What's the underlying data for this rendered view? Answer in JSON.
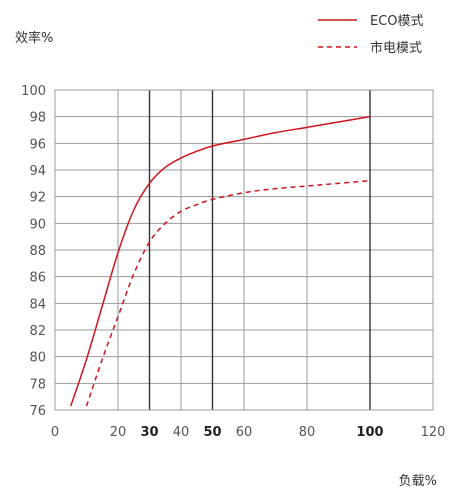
{
  "chart_data": {
    "type": "line",
    "ylabel": "效率%",
    "xlabel": "负载%",
    "xlim": [
      0,
      120
    ],
    "ylim": [
      76,
      100
    ],
    "x_ticks": [
      0,
      20,
      30,
      40,
      50,
      60,
      80,
      100,
      120
    ],
    "x_ticks_bold": [
      30,
      50,
      100
    ],
    "y_ticks": [
      76,
      78,
      80,
      82,
      84,
      86,
      88,
      90,
      92,
      94,
      96,
      98,
      100
    ],
    "grid": true,
    "legend_position": "top-right",
    "series": [
      {
        "name": "ECO模式",
        "color": "#d0141c",
        "line_style": "solid",
        "x": [
          5,
          10,
          15,
          20,
          25,
          30,
          35,
          40,
          45,
          50,
          60,
          70,
          80,
          90,
          100
        ],
        "y": [
          76.3,
          79.8,
          83.8,
          87.8,
          91.0,
          93.0,
          94.2,
          94.9,
          95.4,
          95.8,
          96.3,
          96.8,
          97.2,
          97.6,
          98.0
        ]
      },
      {
        "name": "市电模式",
        "color": "#d0141c",
        "line_style": "dashed",
        "x": [
          10,
          15,
          20,
          25,
          30,
          35,
          40,
          45,
          50,
          60,
          70,
          80,
          90,
          100
        ],
        "y": [
          76.3,
          79.8,
          83.0,
          86.2,
          88.6,
          90.0,
          90.9,
          91.4,
          91.8,
          92.3,
          92.6,
          92.8,
          93.0,
          93.2
        ]
      }
    ]
  }
}
